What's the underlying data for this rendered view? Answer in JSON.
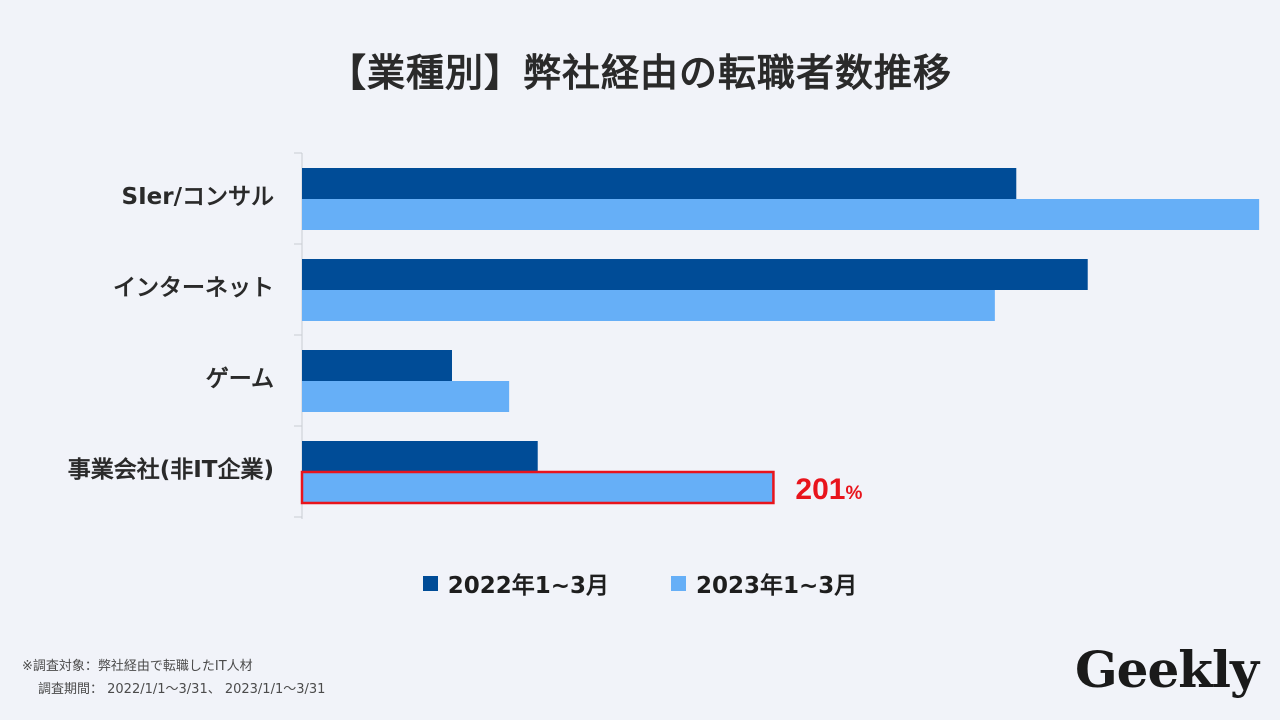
{
  "title": "【業種別】弊社経由の転職者数推移",
  "chart_data": {
    "type": "bar",
    "orientation": "horizontal",
    "categories": [
      "SIer/コンサル",
      "インターネット",
      "ゲーム",
      "事業会社(非IT企業)"
    ],
    "series": [
      {
        "name": "2022年1~3月",
        "color": "#004c97",
        "values": [
          100,
          110,
          21,
          33
        ]
      },
      {
        "name": "2023年1~3月",
        "color": "#66aff7",
        "values": [
          134,
          97,
          29,
          66
        ]
      }
    ],
    "xlim": [
      0,
      140
    ],
    "annotation": {
      "category_index": 3,
      "series_index": 1,
      "value_text": "201",
      "unit": "%",
      "color": "#e8141c"
    }
  },
  "legend": [
    {
      "label": "2022年1~3月",
      "color": "#004c97"
    },
    {
      "label": "2023年1~3月",
      "color": "#66aff7"
    }
  ],
  "footnote": {
    "line1": "※調査対象：弊社経由で転職したIT人材",
    "line2": "調査期間： 2022/1/1〜3/31、 2023/1/1〜3/31"
  },
  "logo": "Geekly"
}
